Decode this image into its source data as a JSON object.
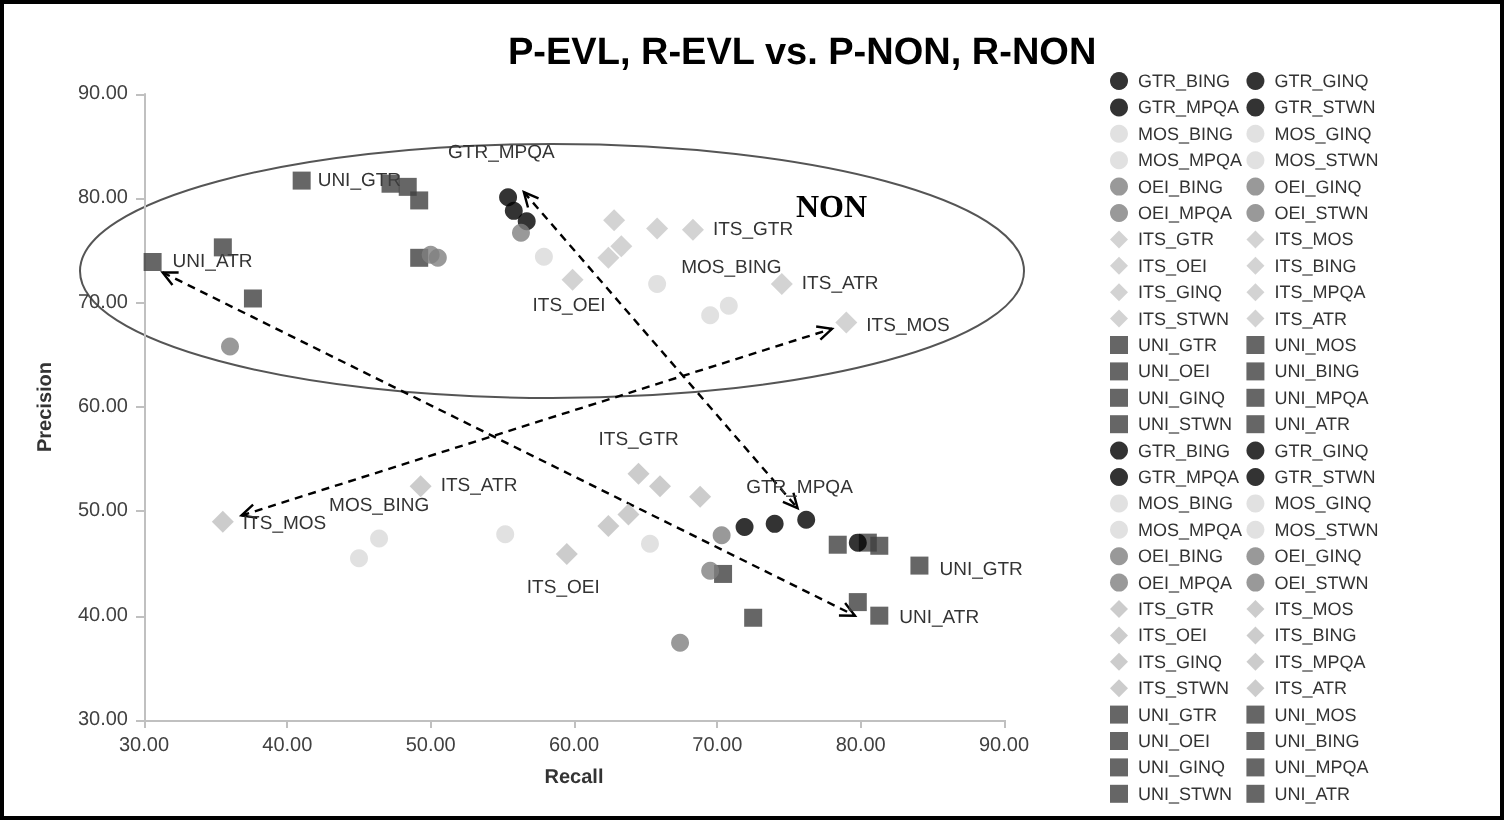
{
  "chart_data": {
    "type": "scatter",
    "title": "P-EVL, R-EVL vs. P-NON, R-NON",
    "xlabel": "Recall",
    "ylabel": "Precision",
    "xlim": [
      30,
      90
    ],
    "ylim": [
      30,
      90
    ],
    "xticks": [
      {
        "value": 30,
        "label": "30.00"
      },
      {
        "value": 40,
        "label": "40.00"
      },
      {
        "value": 50,
        "label": "50.00"
      },
      {
        "value": 60,
        "label": "60.00"
      },
      {
        "value": 70,
        "label": "70.00"
      },
      {
        "value": 80,
        "label": "80.00"
      },
      {
        "value": 90,
        "label": "90.00"
      }
    ],
    "yticks": [
      {
        "value": 30,
        "label": "30.00"
      },
      {
        "value": 40,
        "label": "40.00"
      },
      {
        "value": 50,
        "label": "50.00"
      },
      {
        "value": 60,
        "label": "60.00"
      },
      {
        "value": 70,
        "label": "70.00"
      },
      {
        "value": 80,
        "label": "80.00"
      },
      {
        "value": 90,
        "label": "90.00"
      }
    ],
    "legend": "right",
    "series": [
      {
        "name": "GTR_BING",
        "color": "#000000",
        "marker": "circle",
        "x": [
          55.8
        ],
        "values": [
          78.8
        ]
      },
      {
        "name": "GTR_GINQ",
        "color": "#000000",
        "marker": "circle",
        "x": [
          56.7
        ],
        "values": [
          77.8
        ]
      },
      {
        "name": "GTR_MPQA",
        "color": "#000000",
        "marker": "circle",
        "x": [
          55.4
        ],
        "values": [
          80.1
        ]
      },
      {
        "name": "GTR_STWN",
        "color": "#000000",
        "marker": "circle",
        "x": [
          null
        ],
        "values": [
          null
        ]
      },
      {
        "name": "MOS_BING",
        "color": "#d9d9d9",
        "marker": "circle",
        "x": [
          65.8
        ],
        "values": [
          71.8
        ]
      },
      {
        "name": "MOS_GINQ",
        "color": "#d9d9d9",
        "marker": "circle",
        "x": [
          57.9
        ],
        "values": [
          74.4
        ]
      },
      {
        "name": "MOS_MPQA",
        "color": "#d9d9d9",
        "marker": "circle",
        "x": [
          69.5
        ],
        "values": [
          68.8
        ]
      },
      {
        "name": "MOS_STWN",
        "color": "#d9d9d9",
        "marker": "circle",
        "x": [
          70.8
        ],
        "values": [
          69.7
        ]
      },
      {
        "name": "OEI_BING",
        "color": "#808080",
        "marker": "circle",
        "x": [
          56.3
        ],
        "values": [
          76.7
        ]
      },
      {
        "name": "OEI_GINQ",
        "color": "#808080",
        "marker": "circle",
        "x": [
          50.0
        ],
        "values": [
          74.6
        ]
      },
      {
        "name": "OEI_MPQA",
        "color": "#808080",
        "marker": "circle",
        "x": [
          50.5
        ],
        "values": [
          74.3
        ]
      },
      {
        "name": "OEI_STWN",
        "color": "#808080",
        "marker": "circle",
        "x": [
          36.0
        ],
        "values": [
          65.8
        ]
      },
      {
        "name": "ITS_GTR",
        "color": "#c8c8c8",
        "marker": "diamond",
        "x": [
          68.3
        ],
        "values": [
          77.0
        ]
      },
      {
        "name": "ITS_MOS",
        "color": "#c8c8c8",
        "marker": "diamond",
        "x": [
          79.0
        ],
        "values": [
          68.1
        ]
      },
      {
        "name": "ITS_OEI",
        "color": "#c8c8c8",
        "marker": "diamond",
        "x": [
          59.9
        ],
        "values": [
          72.2
        ]
      },
      {
        "name": "ITS_BING",
        "color": "#c8c8c8",
        "marker": "diamond",
        "x": [
          62.8
        ],
        "values": [
          77.9
        ]
      },
      {
        "name": "ITS_GINQ",
        "color": "#c8c8c8",
        "marker": "diamond",
        "x": [
          65.8
        ],
        "values": [
          77.1
        ]
      },
      {
        "name": "ITS_MPQA",
        "color": "#c8c8c8",
        "marker": "diamond",
        "x": [
          63.3
        ],
        "values": [
          75.4
        ]
      },
      {
        "name": "ITS_STWN",
        "color": "#c8c8c8",
        "marker": "diamond",
        "x": [
          62.4
        ],
        "values": [
          74.3
        ]
      },
      {
        "name": "ITS_ATR",
        "color": "#c8c8c8",
        "marker": "diamond",
        "x": [
          74.5
        ],
        "values": [
          71.8
        ]
      },
      {
        "name": "UNI_GTR",
        "color": "#404040",
        "marker": "square",
        "x": [
          41.0
        ],
        "values": [
          81.7
        ]
      },
      {
        "name": "UNI_MOS",
        "color": "#404040",
        "marker": "square",
        "x": [
          47.2
        ],
        "values": [
          81.4
        ]
      },
      {
        "name": "UNI_OEI",
        "color": "#404040",
        "marker": "square",
        "x": [
          48.4
        ],
        "values": [
          81.1
        ]
      },
      {
        "name": "UNI_BING",
        "color": "#404040",
        "marker": "square",
        "x": [
          49.2
        ],
        "values": [
          79.8
        ]
      },
      {
        "name": "UNI_GINQ",
        "color": "#404040",
        "marker": "square",
        "x": [
          49.2
        ],
        "values": [
          74.3
        ]
      },
      {
        "name": "UNI_MPQA",
        "color": "#404040",
        "marker": "square",
        "x": [
          35.5
        ],
        "values": [
          75.3
        ]
      },
      {
        "name": "UNI_STWN",
        "color": "#404040",
        "marker": "square",
        "x": [
          37.6
        ],
        "values": [
          70.4
        ]
      },
      {
        "name": "UNI_ATR",
        "color": "#404040",
        "marker": "square",
        "x": [
          30.6
        ],
        "values": [
          73.9
        ]
      },
      {
        "name": "GTR_BING",
        "color": "#000000",
        "marker": "circle",
        "x": [
          71.9
        ],
        "values": [
          48.5
        ]
      },
      {
        "name": "GTR_GINQ",
        "color": "#000000",
        "marker": "circle",
        "x": [
          74.0
        ],
        "values": [
          48.8
        ]
      },
      {
        "name": "GTR_MPQA",
        "color": "#000000",
        "marker": "circle",
        "x": [
          76.2
        ],
        "values": [
          49.2
        ]
      },
      {
        "name": "GTR_STWN",
        "color": "#000000",
        "marker": "circle",
        "x": [
          79.8
        ],
        "values": [
          47.0
        ]
      },
      {
        "name": "MOS_BING",
        "color": "#d9d9d9",
        "marker": "circle",
        "x": [
          46.4
        ],
        "values": [
          47.4
        ]
      },
      {
        "name": "MOS_GINQ",
        "color": "#d9d9d9",
        "marker": "circle",
        "x": [
          45.0
        ],
        "values": [
          45.5
        ]
      },
      {
        "name": "MOS_MPQA",
        "color": "#d9d9d9",
        "marker": "circle",
        "x": [
          55.2
        ],
        "values": [
          47.8
        ]
      },
      {
        "name": "MOS_STWN",
        "color": "#d9d9d9",
        "marker": "circle",
        "x": [
          65.3
        ],
        "values": [
          46.9
        ]
      },
      {
        "name": "OEI_BING",
        "color": "#808080",
        "marker": "circle",
        "x": [
          70.3
        ],
        "values": [
          47.7
        ]
      },
      {
        "name": "OEI_GINQ",
        "color": "#808080",
        "marker": "circle",
        "x": [
          69.5
        ],
        "values": [
          44.3
        ]
      },
      {
        "name": "OEI_MPQA",
        "color": "#808080",
        "marker": "circle",
        "x": [
          67.4
        ],
        "values": [
          37.4
        ]
      },
      {
        "name": "OEI_STWN",
        "color": "#808080",
        "marker": "circle",
        "x": [
          null
        ],
        "values": [
          null
        ]
      },
      {
        "name": "ITS_GTR",
        "color": "#bfbfbf",
        "marker": "diamond",
        "x": [
          64.5
        ],
        "values": [
          53.6
        ]
      },
      {
        "name": "ITS_MOS",
        "color": "#bfbfbf",
        "marker": "diamond",
        "x": [
          35.5
        ],
        "values": [
          49.0
        ]
      },
      {
        "name": "ITS_OEI",
        "color": "#bfbfbf",
        "marker": "diamond",
        "x": [
          59.5
        ],
        "values": [
          45.9
        ]
      },
      {
        "name": "ITS_BING",
        "color": "#bfbfbf",
        "marker": "diamond",
        "x": [
          66.0
        ],
        "values": [
          52.4
        ]
      },
      {
        "name": "ITS_GINQ",
        "color": "#bfbfbf",
        "marker": "diamond",
        "x": [
          68.8
        ],
        "values": [
          51.4
        ]
      },
      {
        "name": "ITS_MPQA",
        "color": "#bfbfbf",
        "marker": "diamond",
        "x": [
          63.8
        ],
        "values": [
          49.7
        ]
      },
      {
        "name": "ITS_STWN",
        "color": "#bfbfbf",
        "marker": "diamond",
        "x": [
          62.4
        ],
        "values": [
          48.6
        ]
      },
      {
        "name": "ITS_ATR",
        "color": "#bfbfbf",
        "marker": "diamond",
        "x": [
          49.3
        ],
        "values": [
          52.4
        ]
      },
      {
        "name": "UNI_GTR",
        "color": "#404040",
        "marker": "square",
        "x": [
          84.1
        ],
        "values": [
          44.8
        ]
      },
      {
        "name": "UNI_MOS",
        "color": "#404040",
        "marker": "square",
        "x": [
          78.4
        ],
        "values": [
          46.8
        ]
      },
      {
        "name": "UNI_OEI",
        "color": "#404040",
        "marker": "square",
        "x": [
          80.5
        ],
        "values": [
          47.0
        ]
      },
      {
        "name": "UNI_BING",
        "color": "#404040",
        "marker": "square",
        "x": [
          81.3
        ],
        "values": [
          46.7
        ]
      },
      {
        "name": "UNI_GINQ",
        "color": "#404040",
        "marker": "square",
        "x": [
          70.4
        ],
        "values": [
          44.0
        ]
      },
      {
        "name": "UNI_MPQA",
        "color": "#404040",
        "marker": "square",
        "x": [
          79.8
        ],
        "values": [
          41.3
        ]
      },
      {
        "name": "UNI_STWN",
        "color": "#404040",
        "marker": "square",
        "x": [
          72.5
        ],
        "values": [
          39.8
        ]
      },
      {
        "name": "UNI_ATR",
        "color": "#404040",
        "marker": "square",
        "x": [
          81.3
        ],
        "values": [
          40.0
        ]
      }
    ],
    "annotations": [
      {
        "text": "UNI_GTR",
        "x": 41.0,
        "y": 81.7
      },
      {
        "text": "GTR_MPQA",
        "x": 55.4,
        "y": 80.1
      },
      {
        "text": "ITS_GTR",
        "x": 68.3,
        "y": 77.0
      },
      {
        "text": "UNI_ATR",
        "x": 30.6,
        "y": 73.9
      },
      {
        "text": "MOS_BING",
        "x": 65.8,
        "y": 71.8
      },
      {
        "text": "ITS_ATR",
        "x": 74.5,
        "y": 71.8
      },
      {
        "text": "ITS_OEI",
        "x": 59.9,
        "y": 72.2
      },
      {
        "text": "ITS_MOS",
        "x": 79.0,
        "y": 68.1
      },
      "NON",
      {
        "text": "ITS_GTR",
        "x": 64.5,
        "y": 53.6
      },
      {
        "text": "ITS_ATR",
        "x": 49.3,
        "y": 52.4
      },
      {
        "text": "GTR_MPQA",
        "x": 76.2,
        "y": 49.2
      },
      {
        "text": "ITS_MOS",
        "x": 35.5,
        "y": 49.0
      },
      {
        "text": "MOS_BING",
        "x": 46.4,
        "y": 47.4
      },
      {
        "text": "ITS_OEI",
        "x": 59.5,
        "y": 45.9
      },
      {
        "text": "UNI_GTR",
        "x": 84.1,
        "y": 44.8
      },
      {
        "text": "UNI_ATR",
        "x": 81.3,
        "y": 40.0
      }
    ]
  }
}
